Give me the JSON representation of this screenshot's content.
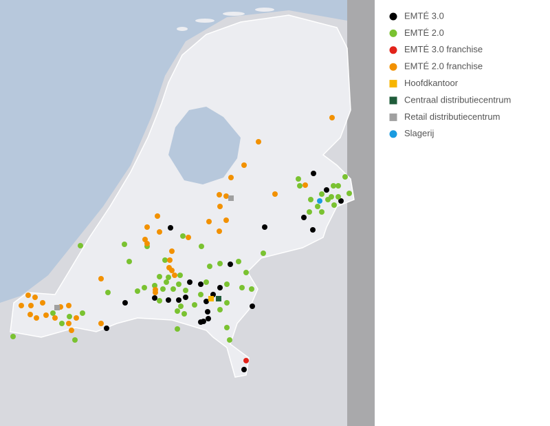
{
  "legend": {
    "items": [
      {
        "label": "EMTÉ 3.0",
        "color": "#000000",
        "marker": "circle"
      },
      {
        "label": "EMTÉ 2.0",
        "color": "#7ac231",
        "marker": "circle"
      },
      {
        "label": "EMTÉ 3.0 franchise",
        "color": "#e2231a",
        "marker": "circle"
      },
      {
        "label": "EMTÉ 2.0 franchise",
        "color": "#f29100",
        "marker": "circle"
      },
      {
        "label": "Hoofdkantoor",
        "color": "#f7b500",
        "marker": "square"
      },
      {
        "label": "Centraal distributiecentrum",
        "color": "#1f5c3a",
        "marker": "square"
      },
      {
        "label": "Retail distributiecentrum",
        "color": "#a0a0a0",
        "marker": "square"
      },
      {
        "label": "Slagerij",
        "color": "#1a9be0",
        "marker": "circle"
      }
    ]
  }
}
